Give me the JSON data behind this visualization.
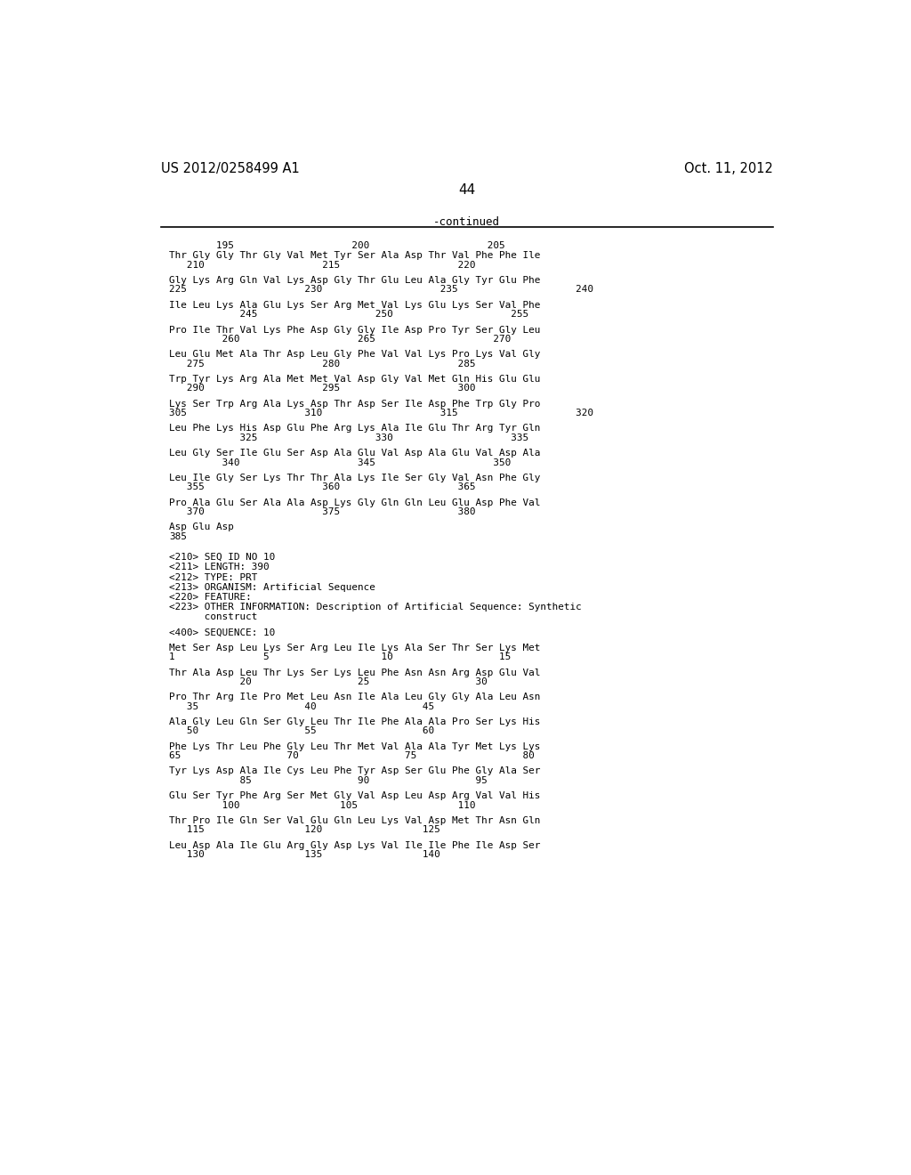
{
  "header_left": "US 2012/0258499 A1",
  "header_right": "Oct. 11, 2012",
  "page_number": "44",
  "continued_label": "-continued",
  "background_color": "#ffffff",
  "text_color": "#000000",
  "content_lines": [
    {
      "type": "ruler",
      "text": "        195                    200                    205"
    },
    {
      "type": "seq",
      "text": "Thr Gly Gly Thr Gly Val Met Tyr Ser Ala Asp Thr Val Phe Phe Ile"
    },
    {
      "type": "pos",
      "text": "   210                    215                    220"
    },
    {
      "type": "blank"
    },
    {
      "type": "seq",
      "text": "Gly Lys Arg Gln Val Lys Asp Gly Thr Glu Leu Ala Gly Tyr Glu Phe"
    },
    {
      "type": "pos",
      "text": "225                    230                    235                    240"
    },
    {
      "type": "blank"
    },
    {
      "type": "seq",
      "text": "Ile Leu Lys Ala Glu Lys Ser Arg Met Val Lys Glu Lys Ser Val Phe"
    },
    {
      "type": "pos",
      "text": "            245                    250                    255"
    },
    {
      "type": "blank"
    },
    {
      "type": "seq",
      "text": "Pro Ile Thr Val Lys Phe Asp Gly Gly Ile Asp Pro Tyr Ser Gly Leu"
    },
    {
      "type": "pos",
      "text": "         260                    265                    270"
    },
    {
      "type": "blank"
    },
    {
      "type": "seq",
      "text": "Leu Glu Met Ala Thr Asp Leu Gly Phe Val Val Lys Pro Lys Val Gly"
    },
    {
      "type": "pos",
      "text": "   275                    280                    285"
    },
    {
      "type": "blank"
    },
    {
      "type": "seq",
      "text": "Trp Tyr Lys Arg Ala Met Met Val Asp Gly Val Met Gln His Glu Glu"
    },
    {
      "type": "pos",
      "text": "   290                    295                    300"
    },
    {
      "type": "blank"
    },
    {
      "type": "seq",
      "text": "Lys Ser Trp Arg Ala Lys Asp Thr Asp Ser Ile Asp Phe Trp Gly Pro"
    },
    {
      "type": "pos",
      "text": "305                    310                    315                    320"
    },
    {
      "type": "blank"
    },
    {
      "type": "seq",
      "text": "Leu Phe Lys His Asp Glu Phe Arg Lys Ala Ile Glu Thr Arg Tyr Gln"
    },
    {
      "type": "pos",
      "text": "            325                    330                    335"
    },
    {
      "type": "blank"
    },
    {
      "type": "seq",
      "text": "Leu Gly Ser Ile Glu Ser Asp Ala Glu Val Asp Ala Glu Val Asp Ala"
    },
    {
      "type": "pos",
      "text": "         340                    345                    350"
    },
    {
      "type": "blank"
    },
    {
      "type": "seq",
      "text": "Leu Ile Gly Ser Lys Thr Thr Ala Lys Ile Ser Gly Val Asn Phe Gly"
    },
    {
      "type": "pos",
      "text": "   355                    360                    365"
    },
    {
      "type": "blank"
    },
    {
      "type": "seq",
      "text": "Pro Ala Glu Ser Ala Ala Asp Lys Gly Gln Gln Leu Glu Asp Phe Val"
    },
    {
      "type": "pos",
      "text": "   370                    375                    380"
    },
    {
      "type": "blank"
    },
    {
      "type": "seq",
      "text": "Asp Glu Asp"
    },
    {
      "type": "pos",
      "text": "385"
    },
    {
      "type": "blank"
    },
    {
      "type": "blank"
    },
    {
      "type": "meta",
      "text": "<210> SEQ ID NO 10"
    },
    {
      "type": "meta",
      "text": "<211> LENGTH: 390"
    },
    {
      "type": "meta",
      "text": "<212> TYPE: PRT"
    },
    {
      "type": "meta",
      "text": "<213> ORGANISM: Artificial Sequence"
    },
    {
      "type": "meta",
      "text": "<220> FEATURE:"
    },
    {
      "type": "meta",
      "text": "<223> OTHER INFORMATION: Description of Artificial Sequence: Synthetic"
    },
    {
      "type": "meta",
      "text": "      construct"
    },
    {
      "type": "blank"
    },
    {
      "type": "meta",
      "text": "<400> SEQUENCE: 10"
    },
    {
      "type": "blank"
    },
    {
      "type": "seq",
      "text": "Met Ser Asp Leu Lys Ser Arg Leu Ile Lys Ala Ser Thr Ser Lys Met"
    },
    {
      "type": "pos",
      "text": "1               5                   10                  15"
    },
    {
      "type": "blank"
    },
    {
      "type": "seq",
      "text": "Thr Ala Asp Leu Thr Lys Ser Lys Leu Phe Asn Asn Arg Asp Glu Val"
    },
    {
      "type": "pos",
      "text": "            20                  25                  30"
    },
    {
      "type": "blank"
    },
    {
      "type": "seq",
      "text": "Pro Thr Arg Ile Pro Met Leu Asn Ile Ala Leu Gly Gly Ala Leu Asn"
    },
    {
      "type": "pos",
      "text": "   35                  40                  45"
    },
    {
      "type": "blank"
    },
    {
      "type": "seq",
      "text": "Ala Gly Leu Gln Ser Gly Leu Thr Ile Phe Ala Ala Pro Ser Lys His"
    },
    {
      "type": "pos",
      "text": "   50                  55                  60"
    },
    {
      "type": "blank"
    },
    {
      "type": "seq",
      "text": "Phe Lys Thr Leu Phe Gly Leu Thr Met Val Ala Ala Tyr Met Lys Lys"
    },
    {
      "type": "pos",
      "text": "65                  70                  75                  80"
    },
    {
      "type": "blank"
    },
    {
      "type": "seq",
      "text": "Tyr Lys Asp Ala Ile Cys Leu Phe Tyr Asp Ser Glu Phe Gly Ala Ser"
    },
    {
      "type": "pos",
      "text": "            85                  90                  95"
    },
    {
      "type": "blank"
    },
    {
      "type": "seq",
      "text": "Glu Ser Tyr Phe Arg Ser Met Gly Val Asp Leu Asp Arg Val Val His"
    },
    {
      "type": "pos",
      "text": "         100                 105                 110"
    },
    {
      "type": "blank"
    },
    {
      "type": "seq",
      "text": "Thr Pro Ile Gln Ser Val Glu Gln Leu Lys Val Asp Met Thr Asn Gln"
    },
    {
      "type": "pos",
      "text": "   115                 120                 125"
    },
    {
      "type": "blank"
    },
    {
      "type": "seq",
      "text": "Leu Asp Ala Ile Glu Arg Gly Asp Lys Val Ile Ile Phe Ile Asp Ser"
    },
    {
      "type": "pos",
      "text": "   130                 135                 140"
    }
  ]
}
